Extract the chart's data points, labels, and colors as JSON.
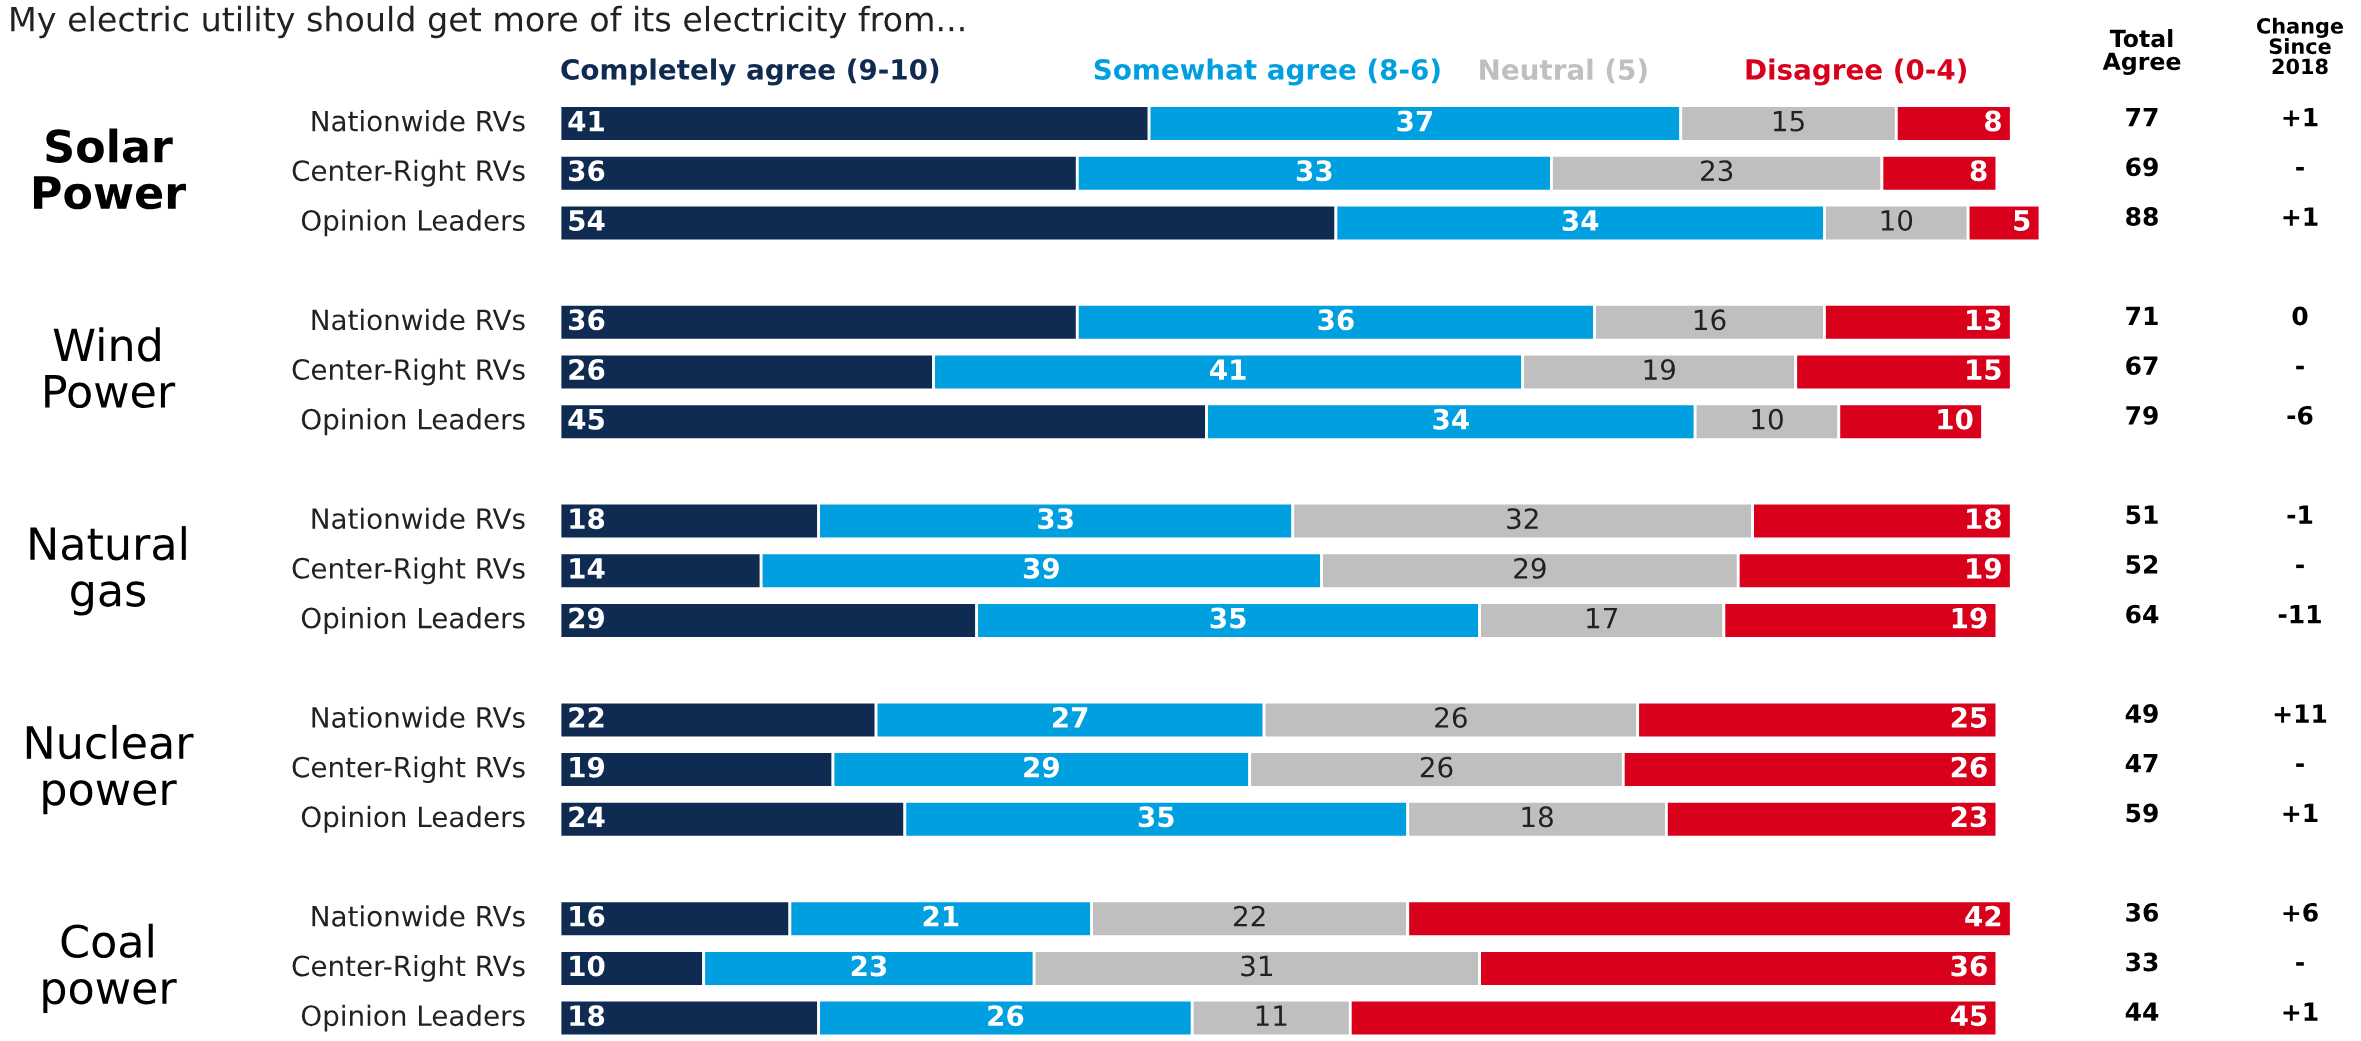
{
  "chart_data": {
    "type": "bar",
    "orientation": "horizontal",
    "stacked": true,
    "data_labels": true,
    "legend": "top",
    "title": "My electric utility should get more of its electricity from...",
    "categories": [
      "Nationwide RVs",
      "Center-Right RVs",
      "Opinion Leaders",
      "Nationwide RVs",
      "Center-Right RVs",
      "Opinion Leaders",
      "Nationwide RVs",
      "Center-Right RVs",
      "Opinion Leaders",
      "Nationwide RVs",
      "Center-Right RVs",
      "Opinion Leaders",
      "Nationwide RVs",
      "Center-Right RVs",
      "Opinion Leaders"
    ],
    "series": [
      {
        "name": "Completely agree (9-10)",
        "color": "#0f2b52",
        "values": [
          41,
          36,
          54,
          36,
          26,
          45,
          18,
          14,
          29,
          22,
          19,
          24,
          16,
          10,
          18
        ]
      },
      {
        "name": "Somewhat agree (8-6)",
        "color": "#009fdf",
        "values": [
          37,
          33,
          34,
          36,
          41,
          34,
          33,
          39,
          35,
          27,
          29,
          35,
          21,
          23,
          26
        ]
      },
      {
        "name": "Neutral (5)",
        "color": "#bfbfbf",
        "values": [
          15,
          23,
          10,
          16,
          19,
          10,
          32,
          29,
          17,
          26,
          26,
          18,
          22,
          31,
          11
        ]
      },
      {
        "name": "Disagree (0-4)",
        "color": "#d9001b",
        "values": [
          8,
          8,
          5,
          13,
          15,
          10,
          18,
          19,
          19,
          25,
          26,
          23,
          42,
          36,
          45
        ]
      }
    ],
    "annotations": [
      "Total Agree",
      "Change Since 2018",
      "Solar Power",
      "Wind Power",
      "Natural gas",
      "Nuclear power",
      "Coal power",
      "77",
      "+1",
      "69",
      "-",
      "88",
      "+1",
      "71",
      "0",
      "67",
      "-",
      "79",
      "-6",
      "51",
      "-1",
      "52",
      "-",
      "64",
      "-11",
      "49",
      "+11",
      "47",
      "-",
      "59",
      "+1",
      "36",
      "+6",
      "33",
      "-",
      "44",
      "+1"
    ]
  }
}
